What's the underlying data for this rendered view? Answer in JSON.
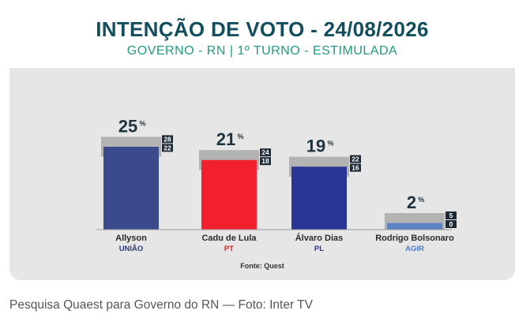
{
  "header": {
    "title": "INTENÇÃO DE VOTO - 24/08/2026",
    "subtitle": "GOVERNO - RN | 1º TURNO - ESTIMULADA"
  },
  "source": "Fonte: Quest",
  "caption": "Pesquisa Quaest para Governo do RN — Foto: Inter TV",
  "percent_symbol": "%",
  "chart_data": {
    "type": "bar",
    "title": "INTENÇÃO DE VOTO - 24/08/2026",
    "subtitle": "GOVERNO - RN | 1º TURNO - ESTIMULADA",
    "categories": [
      "Allyson",
      "Cadu de Lula",
      "Álvaro Dias",
      "Rodrigo Bolsonaro"
    ],
    "parties": [
      "UNIÃO",
      "PT",
      "PL",
      "AGIR"
    ],
    "values": [
      25,
      21,
      19,
      2
    ],
    "value_labels": [
      "25",
      "21",
      "19",
      "2"
    ],
    "upper_margin": [
      28,
      24,
      22,
      5
    ],
    "lower_margin": [
      22,
      18,
      16,
      0
    ],
    "ylim": [
      0,
      30
    ],
    "colors": [
      "#3a4a8a",
      "#f2202c",
      "#283593",
      "#5f82c4"
    ],
    "party_colors": [
      "#2d3b7a",
      "#e31c24",
      "#283593",
      "#4a7bd0"
    ],
    "grid": false
  }
}
